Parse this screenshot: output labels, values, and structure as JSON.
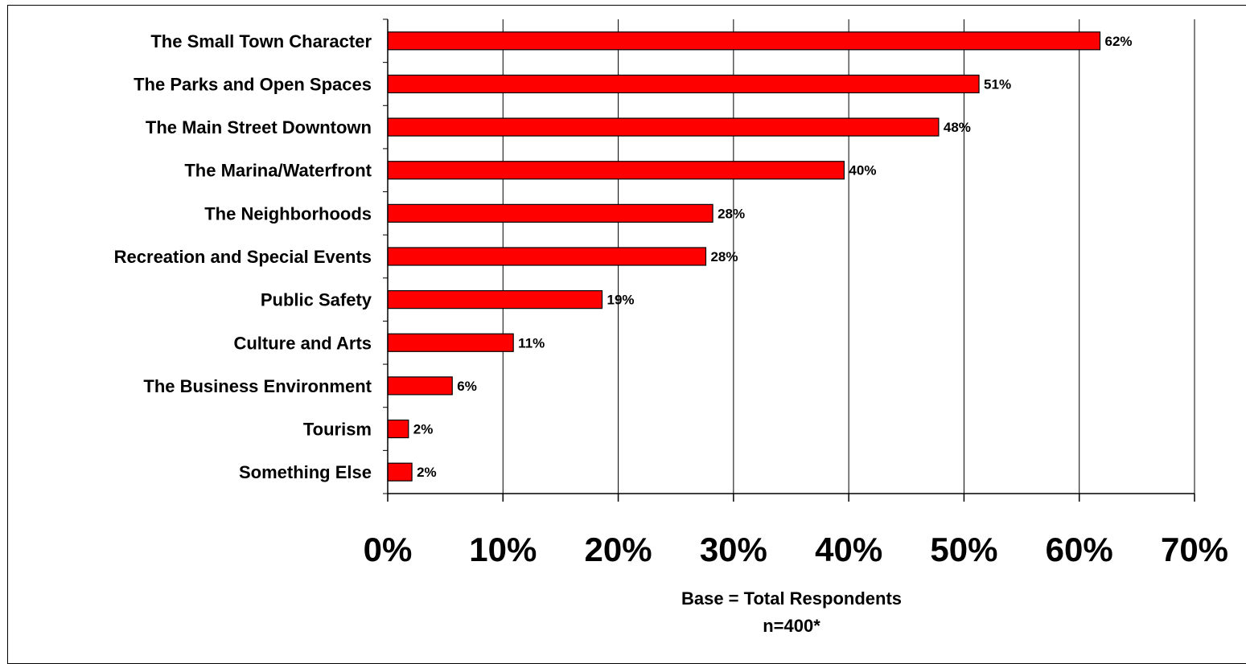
{
  "chart_data": {
    "type": "bar",
    "orientation": "horizontal",
    "categories": [
      "The Small Town Character",
      "The Parks and Open Spaces",
      "The Main Street Downtown",
      "The Marina/Waterfront",
      "The Neighborhoods",
      "Recreation and Special  Events",
      "Public Safety",
      "Culture and Arts",
      "The Business Environment",
      "Tourism",
      "Something Else"
    ],
    "values": [
      62,
      51,
      48,
      40,
      28,
      28,
      19,
      11,
      6,
      2,
      2
    ],
    "plot_values": [
      61.8,
      51.3,
      47.8,
      39.6,
      28.2,
      27.6,
      18.6,
      10.9,
      5.6,
      1.8,
      2.1
    ],
    "value_labels": [
      "62%",
      "51%",
      "48%",
      "40%",
      "28%",
      "28%",
      "19%",
      "11%",
      "6%",
      "2%",
      "2%"
    ],
    "xlim": [
      0,
      70
    ],
    "xticks": [
      0,
      10,
      20,
      30,
      40,
      50,
      60,
      70
    ],
    "xtick_labels": [
      "0%",
      "10%",
      "20%",
      "30%",
      "40%",
      "50%",
      "60%",
      "70%"
    ],
    "grid": "vertical",
    "bar_color": "#ff0000",
    "bar_edge_color": "#000000",
    "notes": [
      "Base = Total  Respondents",
      "n=400*"
    ]
  }
}
